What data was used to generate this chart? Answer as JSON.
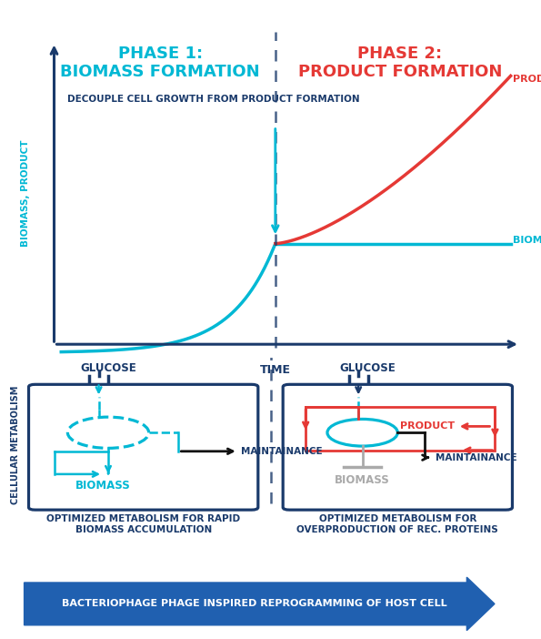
{
  "dark_blue": "#1a3a6b",
  "arrow_blue": "#2060b0",
  "cyan": "#00b8d4",
  "red": "#e53935",
  "black": "#111111",
  "gray": "#aaaaaa",
  "white": "#ffffff",
  "phase1_title": "PHASE 1:\nBIOMASS FORMATION",
  "phase2_title": "PHASE 2:\nPRODUCT FORMATION",
  "decouple_text": "DECOUPLE CELL GROWTH FROM PRODUCT FORMATION",
  "time_label": "TIME",
  "biomass_label": "BIOMASS",
  "product_label": "PRODUCT",
  "ylabel": "BIOMASS, PRODUCT",
  "cell_metabolism_label": "CELLULAR METABOLISM",
  "glucose_label": "GLUCOSE",
  "maintainance_label": "MAINTAINANCE",
  "biomass_box1_label": "BIOMASS",
  "biomass_box2_label": "BIOMASS",
  "product_box2_label": "PRODUCT",
  "caption1": "OPTIMIZED METABOLISM FOR RAPID\nBIOMASS ACCUMULATION",
  "caption2": "OPTIMIZED METABOLISM FOR\nOVERPRODUCTION OF REC. PROTEINS",
  "bottom_text": "BACTERIOPHAGE PHAGE INSPIRED REPROGRAMMING OF HOST CELL"
}
